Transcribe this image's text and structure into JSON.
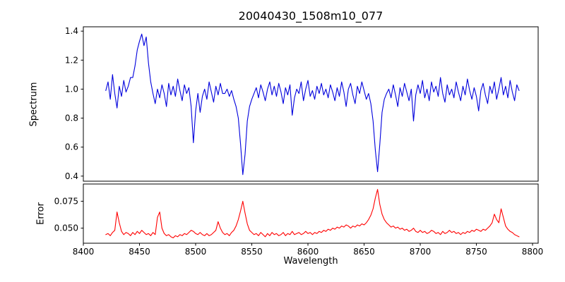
{
  "figure": {
    "title": "20040430_1508m10_077",
    "xlabel": "Wavelength",
    "background": "#ffffff"
  },
  "chart_data": [
    {
      "type": "line",
      "name": "spectrum",
      "title": "20040430_1508m10_077",
      "ylabel": "Spectrum",
      "color": "#0000dd",
      "line_width": 1.1,
      "x_start": 8420,
      "x_step": 2,
      "xlim": [
        8400,
        8805
      ],
      "ylim": [
        0.365,
        1.43
      ],
      "ytick_values": [
        0.4,
        0.6,
        0.8,
        1.0,
        1.2,
        1.4
      ],
      "ytick_labels": [
        "0.4",
        "0.6",
        "0.8",
        "1.0",
        "1.2",
        "1.4"
      ],
      "grid": false,
      "legend": "none",
      "values": [
        0.99,
        1.05,
        0.93,
        1.1,
        0.97,
        0.87,
        1.02,
        0.95,
        1.06,
        0.98,
        1.02,
        1.08,
        1.08,
        1.16,
        1.27,
        1.33,
        1.38,
        1.3,
        1.36,
        1.18,
        1.05,
        0.97,
        0.9,
        1.0,
        0.94,
        1.03,
        0.97,
        0.88,
        1.04,
        0.96,
        1.02,
        0.95,
        1.07,
        0.99,
        0.92,
        1.03,
        0.97,
        1.01,
        0.88,
        0.63,
        0.85,
        0.97,
        0.84,
        0.95,
        1.0,
        0.93,
        1.05,
        0.98,
        0.91,
        1.02,
        0.96,
        1.04,
        0.97,
        0.97,
        1.0,
        0.95,
        0.99,
        0.93,
        0.88,
        0.8,
        0.62,
        0.41,
        0.55,
        0.78,
        0.88,
        0.93,
        0.97,
        1.01,
        0.94,
        1.03,
        0.98,
        0.92,
        1.0,
        1.05,
        0.96,
        1.02,
        0.95,
        1.04,
        0.98,
        0.9,
        1.01,
        0.96,
        1.03,
        0.82,
        0.94,
        1.0,
        0.97,
        1.05,
        0.92,
        1.0,
        1.06,
        0.95,
        0.99,
        0.93,
        1.02,
        0.97,
        1.04,
        0.96,
        1.0,
        0.94,
        1.03,
        0.98,
        0.92,
        1.01,
        0.95,
        1.05,
        0.98,
        0.88,
        1.0,
        1.04,
        0.96,
        0.9,
        1.02,
        0.97,
        1.05,
        0.99,
        0.93,
        0.97,
        0.9,
        0.78,
        0.58,
        0.43,
        0.62,
        0.84,
        0.93,
        0.97,
        1.0,
        0.94,
        1.03,
        0.96,
        0.88,
        1.01,
        0.95,
        1.04,
        0.98,
        0.92,
        1.0,
        0.78,
        0.96,
        1.03,
        0.97,
        1.06,
        0.94,
        1.0,
        0.92,
        1.05,
        0.98,
        1.02,
        0.95,
        1.08,
        0.97,
        0.91,
        1.03,
        0.96,
        1.0,
        0.94,
        1.05,
        0.98,
        0.92,
        1.02,
        0.96,
        1.07,
        0.99,
        0.93,
        1.01,
        0.95,
        0.85,
        0.99,
        1.04,
        0.96,
        0.9,
        1.02,
        0.97,
        1.05,
        0.93,
        1.0,
        1.08,
        0.96,
        1.02,
        0.94,
        1.06,
        0.98,
        0.92,
        1.03,
        0.99
      ]
    },
    {
      "type": "line",
      "name": "error",
      "ylabel": "Error",
      "xlabel": "Wavelength",
      "color": "#ff0000",
      "line_width": 1.1,
      "x_start": 8420,
      "x_step": 2,
      "xlim": [
        8400,
        8805
      ],
      "ylim": [
        0.036,
        0.091
      ],
      "ytick_values": [
        0.05,
        0.075
      ],
      "ytick_labels": [
        "0.050",
        "0.075"
      ],
      "xtick_values": [
        8400,
        8450,
        8500,
        8550,
        8600,
        8650,
        8700,
        8750,
        8800
      ],
      "xtick_labels": [
        "8400",
        "8450",
        "8500",
        "8550",
        "8600",
        "8650",
        "8700",
        "8750",
        "8800"
      ],
      "grid": false,
      "legend": "none",
      "values": [
        0.044,
        0.045,
        0.043,
        0.046,
        0.048,
        0.065,
        0.055,
        0.047,
        0.044,
        0.046,
        0.045,
        0.043,
        0.046,
        0.044,
        0.047,
        0.045,
        0.048,
        0.046,
        0.044,
        0.045,
        0.043,
        0.046,
        0.044,
        0.06,
        0.065,
        0.05,
        0.045,
        0.043,
        0.044,
        0.042,
        0.041,
        0.043,
        0.042,
        0.044,
        0.043,
        0.045,
        0.044,
        0.046,
        0.048,
        0.047,
        0.045,
        0.044,
        0.046,
        0.044,
        0.043,
        0.045,
        0.043,
        0.044,
        0.046,
        0.048,
        0.056,
        0.05,
        0.046,
        0.044,
        0.045,
        0.043,
        0.046,
        0.048,
        0.052,
        0.058,
        0.066,
        0.075,
        0.064,
        0.054,
        0.048,
        0.046,
        0.044,
        0.045,
        0.043,
        0.046,
        0.044,
        0.042,
        0.045,
        0.043,
        0.046,
        0.044,
        0.045,
        0.043,
        0.044,
        0.046,
        0.043,
        0.045,
        0.044,
        0.047,
        0.044,
        0.045,
        0.046,
        0.044,
        0.045,
        0.047,
        0.045,
        0.046,
        0.044,
        0.046,
        0.045,
        0.047,
        0.046,
        0.048,
        0.047,
        0.049,
        0.048,
        0.05,
        0.049,
        0.051,
        0.05,
        0.052,
        0.051,
        0.053,
        0.052,
        0.05,
        0.052,
        0.051,
        0.053,
        0.052,
        0.054,
        0.053,
        0.055,
        0.058,
        0.062,
        0.068,
        0.078,
        0.086,
        0.072,
        0.063,
        0.058,
        0.055,
        0.053,
        0.051,
        0.052,
        0.05,
        0.051,
        0.049,
        0.05,
        0.048,
        0.049,
        0.047,
        0.048,
        0.05,
        0.047,
        0.046,
        0.048,
        0.046,
        0.047,
        0.045,
        0.046,
        0.048,
        0.047,
        0.045,
        0.046,
        0.044,
        0.047,
        0.045,
        0.046,
        0.048,
        0.046,
        0.047,
        0.045,
        0.046,
        0.044,
        0.046,
        0.045,
        0.047,
        0.046,
        0.048,
        0.047,
        0.049,
        0.048,
        0.047,
        0.049,
        0.048,
        0.05,
        0.052,
        0.055,
        0.063,
        0.058,
        0.055,
        0.068,
        0.06,
        0.052,
        0.049,
        0.047,
        0.046,
        0.044,
        0.043,
        0.042
      ]
    }
  ]
}
